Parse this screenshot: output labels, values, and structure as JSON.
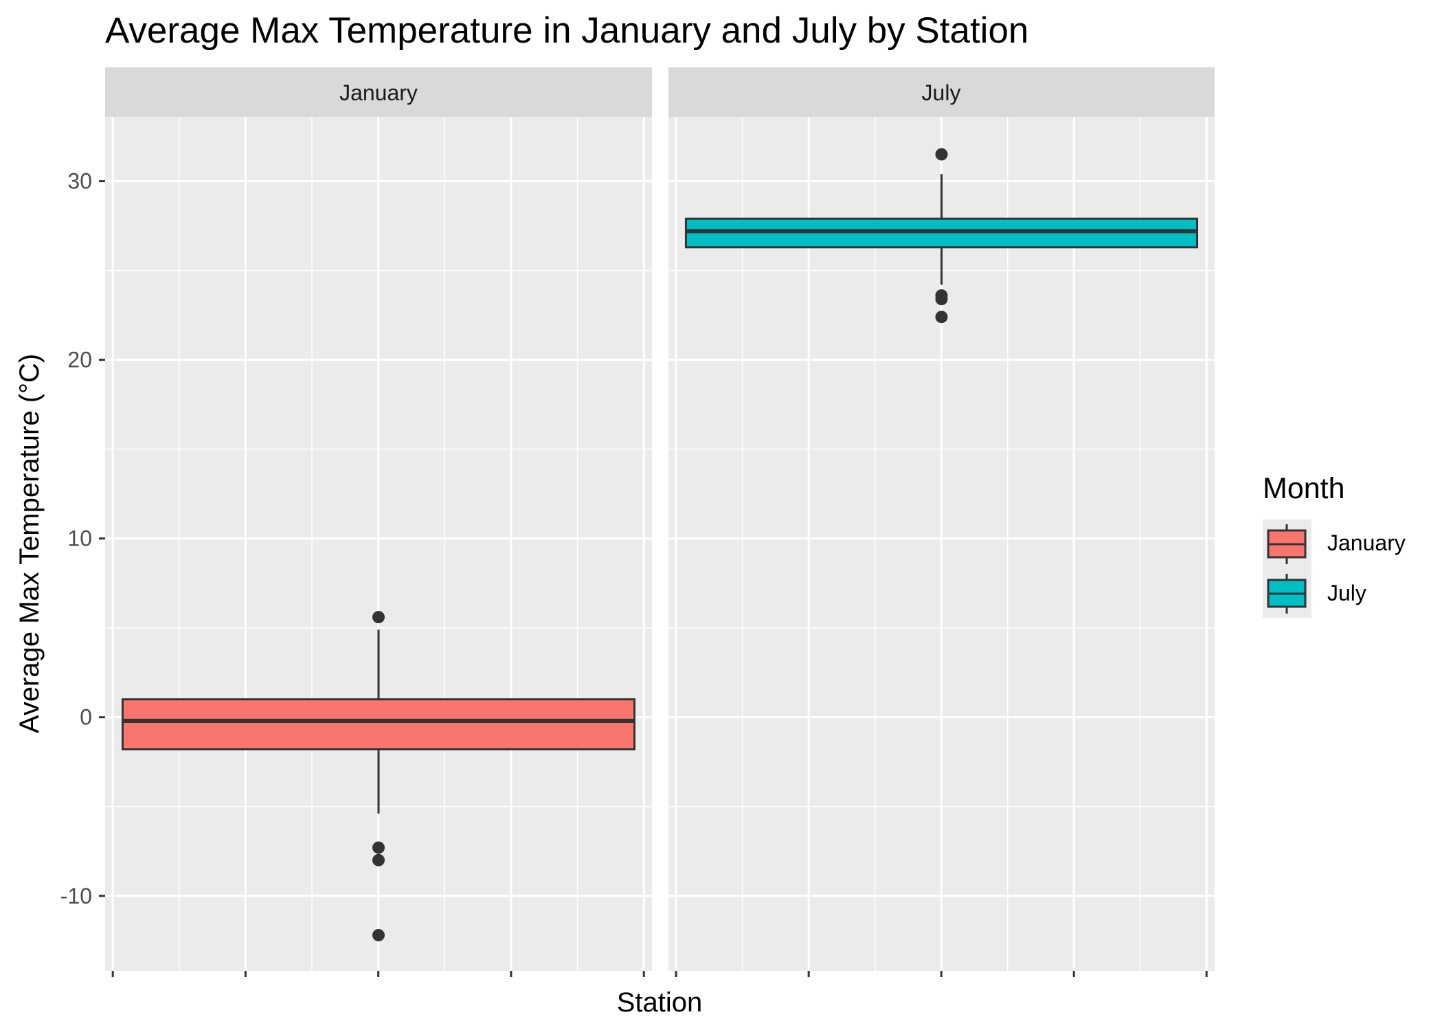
{
  "chart_data": {
    "type": "boxplot",
    "title": "Average Max Temperature in January and July by Station",
    "xlabel": "Station",
    "ylabel": "Average Max Temperature (°C)",
    "ylim": [
      -14.2,
      33.6
    ],
    "yticks": [
      -10,
      0,
      10,
      20,
      30
    ],
    "grid": true,
    "facets": [
      "January",
      "July"
    ],
    "series": [
      {
        "name": "January",
        "facet": "January",
        "color": "#F8766D",
        "stats": {
          "lower_whisker": -5.4,
          "q1": -1.8,
          "median": -0.2,
          "q3": 1.0,
          "upper_whisker": 4.9
        },
        "outliers": [
          5.6,
          -7.3,
          -8.0,
          -12.2
        ]
      },
      {
        "name": "July",
        "facet": "July",
        "color": "#00BFC4",
        "stats": {
          "lower_whisker": 24.2,
          "q1": 26.3,
          "median": 27.2,
          "q3": 27.9,
          "upper_whisker": 30.4
        },
        "outliers": [
          31.5,
          23.6,
          23.4,
          22.4
        ]
      }
    ],
    "legend": {
      "title": "Month",
      "position": "right",
      "items": [
        {
          "label": "January",
          "color": "#F8766D"
        },
        {
          "label": "July",
          "color": "#00BFC4"
        }
      ]
    }
  }
}
